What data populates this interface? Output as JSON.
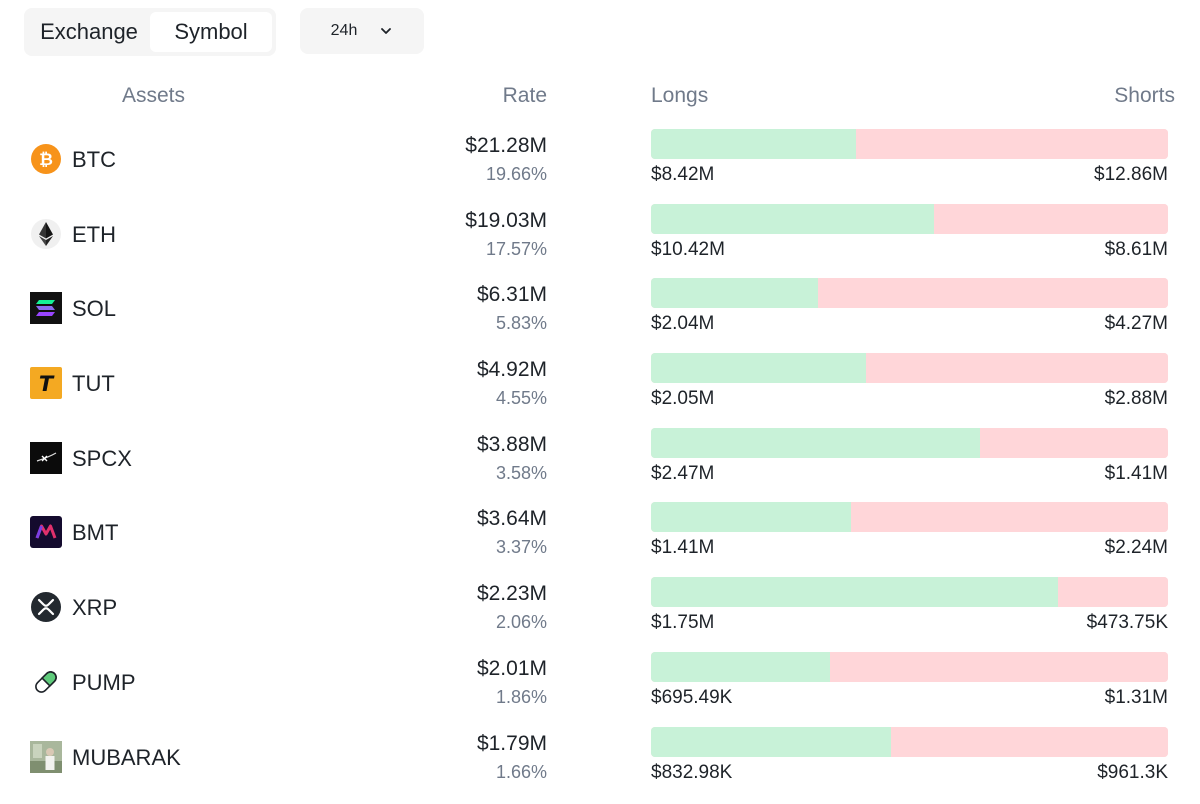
{
  "toolbar": {
    "tabs": [
      {
        "label": "Exchange",
        "active": false
      },
      {
        "label": "Symbol",
        "active": true
      }
    ],
    "timeframe": "24h"
  },
  "table": {
    "headers": {
      "assets": "Assets",
      "rate": "Rate",
      "longs": "Longs",
      "shorts": "Shorts"
    },
    "rows": [
      {
        "symbol": "BTC",
        "icon": "bitcoin-icon",
        "rate": "$21.28M",
        "pct": "19.66%",
        "longs": "$8.42M",
        "shorts": "$12.86M",
        "long_share": 0.3957
      },
      {
        "symbol": "ETH",
        "icon": "ethereum-icon",
        "rate": "$19.03M",
        "pct": "17.57%",
        "longs": "$10.42M",
        "shorts": "$8.61M",
        "long_share": 0.5476
      },
      {
        "symbol": "SOL",
        "icon": "solana-icon",
        "rate": "$6.31M",
        "pct": "5.83%",
        "longs": "$2.04M",
        "shorts": "$4.27M",
        "long_share": 0.3233
      },
      {
        "symbol": "TUT",
        "icon": "tut-icon",
        "rate": "$4.92M",
        "pct": "4.55%",
        "longs": "$2.05M",
        "shorts": "$2.88M",
        "long_share": 0.4158
      },
      {
        "symbol": "SPCX",
        "icon": "spcx-icon",
        "rate": "$3.88M",
        "pct": "3.58%",
        "longs": "$2.47M",
        "shorts": "$1.41M",
        "long_share": 0.6366
      },
      {
        "symbol": "BMT",
        "icon": "bmt-icon",
        "rate": "$3.64M",
        "pct": "3.37%",
        "longs": "$1.41M",
        "shorts": "$2.24M",
        "long_share": 0.3863
      },
      {
        "symbol": "XRP",
        "icon": "xrp-icon",
        "rate": "$2.23M",
        "pct": "2.06%",
        "longs": "$1.75M",
        "shorts": "$473.75K",
        "long_share": 0.787
      },
      {
        "symbol": "PUMP",
        "icon": "pill-icon",
        "rate": "$2.01M",
        "pct": "1.86%",
        "longs": "$695.49K",
        "shorts": "$1.31M",
        "long_share": 0.3468
      },
      {
        "symbol": "MUBARAK",
        "icon": "mubarak-icon",
        "rate": "$1.79M",
        "pct": "1.66%",
        "longs": "$832.98K",
        "shorts": "$961.3K",
        "long_share": 0.4643
      }
    ]
  },
  "colors": {
    "long_bar": "#c8f2d8",
    "short_bar": "#ffd6d9",
    "text": "#1e2329",
    "muted": "#707a8a"
  }
}
